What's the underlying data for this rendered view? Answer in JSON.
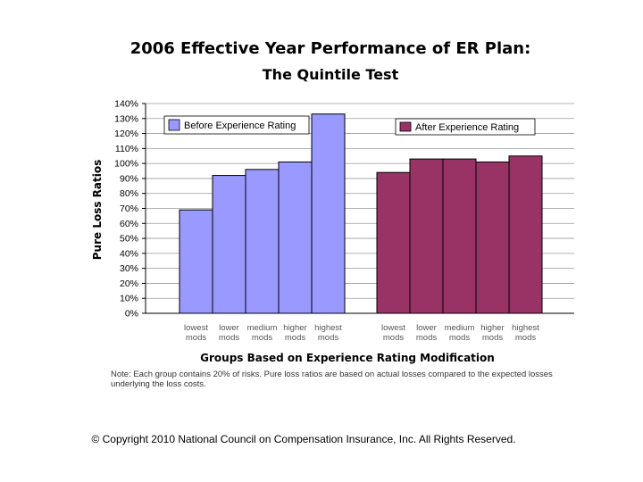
{
  "header": {
    "title_line1": "2006 Effective Year Performance of ER Plan:",
    "title_line2": "The Quintile Test"
  },
  "chart_data": {
    "type": "bar",
    "title": "2006 Effective Year Performance of ER Plan: The Quintile Test",
    "xlabel": "Groups Based on Experience Rating Modification",
    "ylabel": "Pure Loss Ratios",
    "ylim": [
      0,
      140
    ],
    "yticks": [
      "0%",
      "10%",
      "20%",
      "30%",
      "40%",
      "50%",
      "60%",
      "70%",
      "80%",
      "90%",
      "100%",
      "110%",
      "120%",
      "130%",
      "140%"
    ],
    "grid": true,
    "categories": [
      [
        "lowest",
        "mods"
      ],
      [
        "lower",
        "mods"
      ],
      [
        "medium",
        "mods"
      ],
      [
        "higher",
        "mods"
      ],
      [
        "highest",
        "mods"
      ]
    ],
    "series": [
      {
        "name": "Before Experience Rating",
        "color": "#9999ff",
        "values": [
          69,
          92,
          96,
          101,
          133
        ]
      },
      {
        "name": "After Experience Rating",
        "color": "#993366",
        "values": [
          94,
          103,
          103,
          101,
          105
        ]
      }
    ]
  },
  "note": "Note: Each group contains 20% of risks. Pure loss ratios are based on actual losses compared to the expected losses underlying the loss costs.",
  "footer": {
    "copyright": "© Copyright 2010 National Council on Compensation Insurance, Inc. All Rights Reserved."
  }
}
